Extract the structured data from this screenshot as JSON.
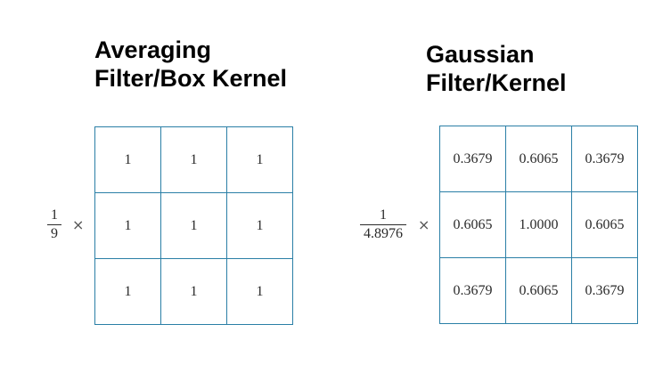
{
  "box_filter": {
    "title_line1": "Averaging",
    "title_line2": "Filter/Box Kernel",
    "numerator": "1",
    "denominator": "9",
    "operator": "×",
    "rows": [
      [
        "1",
        "1",
        "1"
      ],
      [
        "1",
        "1",
        "1"
      ],
      [
        "1",
        "1",
        "1"
      ]
    ]
  },
  "gaussian_filter": {
    "title_line1": "Gaussian",
    "title_line2": "Filter/Kernel",
    "numerator": "1",
    "denominator": "4.8976",
    "operator": "×",
    "rows": [
      [
        "0.3679",
        "0.6065",
        "0.3679"
      ],
      [
        "0.6065",
        "1.0000",
        "0.6065"
      ],
      [
        "0.3679",
        "0.6065",
        "0.3679"
      ]
    ]
  },
  "colors": {
    "grid_line": "#2a7fa6",
    "text": "#2a2a2a"
  }
}
